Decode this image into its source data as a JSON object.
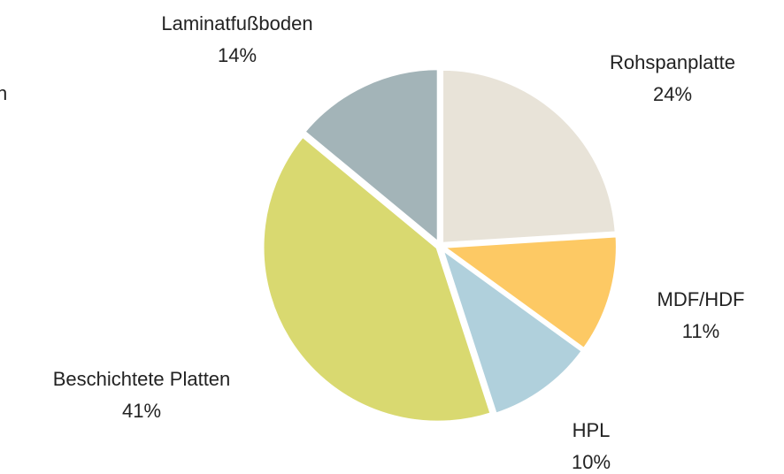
{
  "chart_data": {
    "type": "pie",
    "annotation": "n",
    "categories": [
      "Rohspanplatte",
      "MDF/HDF",
      "HPL",
      "Beschichtete Platten",
      "Laminatfußboden"
    ],
    "values": [
      24,
      11,
      10,
      41,
      14
    ],
    "value_labels": [
      "24%",
      "11%",
      "10%",
      "41%",
      "14%"
    ],
    "colors": [
      "#e8e3d8",
      "#fdc964",
      "#b0d0dc",
      "#d9d970",
      "#a3b4b8"
    ],
    "start_angle": 90,
    "direction": "clockwise"
  }
}
